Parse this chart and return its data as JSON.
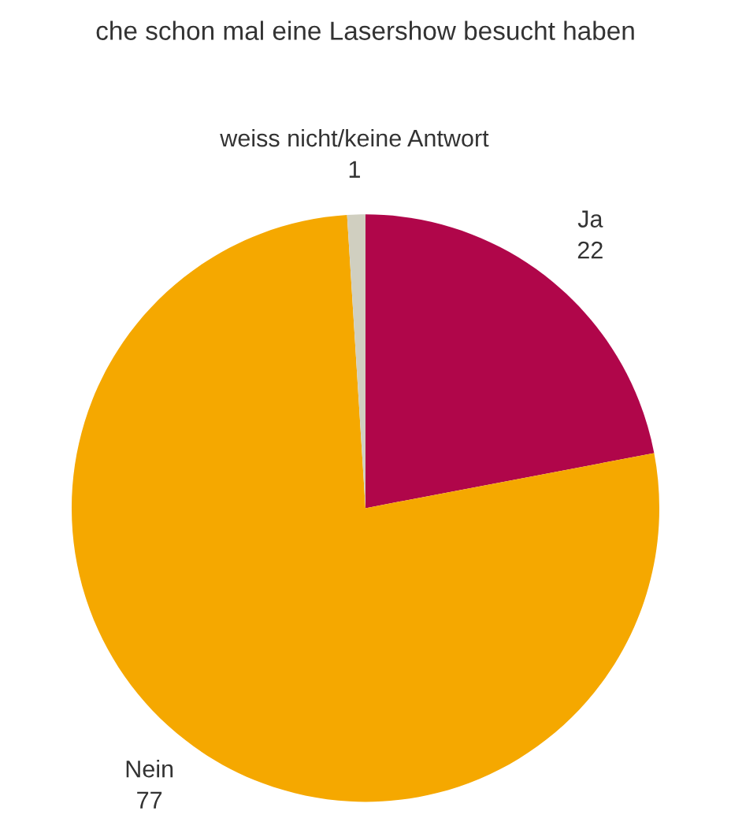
{
  "chart_data": {
    "type": "pie",
    "title": "che schon mal eine Lasershow besucht haben",
    "categories": [
      "Ja",
      "Nein",
      "weiss nicht/keine Antwort"
    ],
    "values": [
      22,
      77,
      1
    ],
    "colors": [
      "#b0064a",
      "#f5a800",
      "#d0cfc0"
    ],
    "data_labels": true
  }
}
